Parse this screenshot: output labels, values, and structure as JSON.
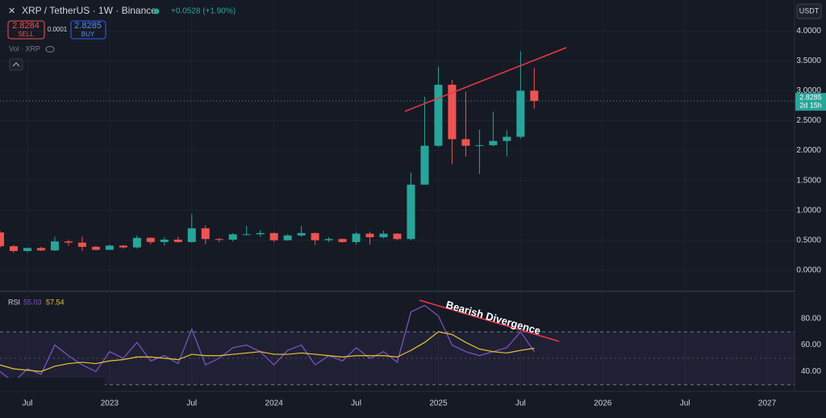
{
  "header": {
    "symbol": "XRP / TetherUS · 1W · Binance",
    "change": "+0.0528 (+1.90%)",
    "sell_price": "2.8284",
    "sell_label": "SELL",
    "spread": "0.0001",
    "buy_price": "2.8285",
    "buy_label": "BUY",
    "volume_label": "Vol · XRP",
    "currency": "USDT"
  },
  "chart_data": [
    {
      "type": "candlestick",
      "x": [
        "2022-05",
        "2022-06",
        "2022-07",
        "2022-08",
        "2022-09",
        "2022-10",
        "2022-11",
        "2022-12",
        "2023-01",
        "2023-02",
        "2023-03",
        "2023-04",
        "2023-05",
        "2023-06",
        "2023-07",
        "2023-08",
        "2023-09",
        "2023-10",
        "2023-11",
        "2023-12",
        "2024-01",
        "2024-02",
        "2024-03",
        "2024-04",
        "2024-05",
        "2024-06",
        "2024-07",
        "2024-08",
        "2024-09",
        "2024-10",
        "2024-11",
        "2024-12",
        "2025-01",
        "2025-02",
        "2025-03",
        "2025-04",
        "2025-05",
        "2025-06",
        "2025-07",
        "2025-08"
      ],
      "open": [
        0.63,
        0.4,
        0.32,
        0.37,
        0.33,
        0.48,
        0.46,
        0.39,
        0.34,
        0.41,
        0.38,
        0.54,
        0.47,
        0.51,
        0.47,
        0.7,
        0.52,
        0.51,
        0.6,
        0.6,
        0.62,
        0.5,
        0.58,
        0.62,
        0.5,
        0.52,
        0.47,
        0.61,
        0.55,
        0.61,
        0.52,
        1.43,
        2.08,
        3.1,
        2.19,
        2.08,
        2.09,
        2.16,
        2.23,
        3.0
      ],
      "high": [
        0.66,
        0.42,
        0.38,
        0.39,
        0.56,
        0.51,
        0.56,
        0.41,
        0.43,
        0.42,
        0.58,
        0.55,
        0.55,
        0.56,
        0.94,
        0.75,
        0.54,
        0.62,
        0.74,
        0.67,
        0.63,
        0.6,
        0.74,
        0.63,
        0.55,
        0.53,
        0.64,
        0.64,
        0.66,
        0.62,
        1.63,
        2.9,
        3.4,
        3.18,
        2.98,
        2.35,
        2.65,
        2.34,
        3.66,
        3.38
      ],
      "low": [
        0.37,
        0.29,
        0.3,
        0.32,
        0.32,
        0.41,
        0.32,
        0.33,
        0.34,
        0.36,
        0.36,
        0.43,
        0.41,
        0.46,
        0.46,
        0.43,
        0.47,
        0.48,
        0.58,
        0.56,
        0.47,
        0.49,
        0.56,
        0.42,
        0.47,
        0.46,
        0.43,
        0.43,
        0.53,
        0.5,
        0.5,
        1.43,
        2.06,
        1.77,
        1.9,
        1.61,
        2.07,
        1.9,
        2.2,
        2.7
      ],
      "close": [
        0.4,
        0.32,
        0.37,
        0.33,
        0.48,
        0.46,
        0.39,
        0.34,
        0.41,
        0.38,
        0.54,
        0.47,
        0.51,
        0.47,
        0.7,
        0.52,
        0.51,
        0.6,
        0.6,
        0.62,
        0.5,
        0.58,
        0.62,
        0.5,
        0.52,
        0.47,
        0.61,
        0.55,
        0.61,
        0.52,
        1.43,
        2.08,
        3.1,
        2.19,
        2.08,
        2.09,
        2.16,
        2.23,
        3.0,
        2.83
      ],
      "up_color": "#26a69a",
      "down_color": "#ef5350",
      "xlim": [
        "2022-05",
        "2027-03"
      ],
      "xticks": [
        {
          "value": "2022-07",
          "label": "Jul"
        },
        {
          "value": "2023-01",
          "label": "2023"
        },
        {
          "value": "2023-07",
          "label": "Jul"
        },
        {
          "value": "2024-01",
          "label": "2024"
        },
        {
          "value": "2024-07",
          "label": "Jul"
        },
        {
          "value": "2025-01",
          "label": "2025"
        },
        {
          "value": "2025-07",
          "label": "Jul"
        },
        {
          "value": "2026-01",
          "label": "2026"
        },
        {
          "value": "2026-07",
          "label": "Jul"
        },
        {
          "value": "2027-01",
          "label": "2027"
        }
      ],
      "ylim": [
        -0.3,
        4.45
      ],
      "yticks": [
        {
          "value": 0,
          "label": "0.0000"
        },
        {
          "value": 0.5,
          "label": "0.5000"
        },
        {
          "value": 1,
          "label": "1.0000"
        },
        {
          "value": 1.5,
          "label": "1.5000"
        },
        {
          "value": 2,
          "label": "2.0000"
        },
        {
          "value": 2.5,
          "label": "2.5000"
        },
        {
          "value": 3,
          "label": "3.0000"
        },
        {
          "value": 3.5,
          "label": "3.5000"
        },
        {
          "value": 4,
          "label": "4.0000"
        }
      ],
      "last_price": {
        "value": 2.8285,
        "label": "2.8285"
      },
      "countdown": "2d 15h"
    },
    {
      "type": "line",
      "title": "RSI",
      "legend_values": [
        55.03,
        57.54
      ],
      "x": [
        "2022-05",
        "2022-06",
        "2022-07",
        "2022-08",
        "2022-09",
        "2022-10",
        "2022-11",
        "2022-12",
        "2023-01",
        "2023-02",
        "2023-03",
        "2023-04",
        "2023-05",
        "2023-06",
        "2023-07",
        "2023-08",
        "2023-09",
        "2023-10",
        "2023-11",
        "2023-12",
        "2024-01",
        "2024-02",
        "2024-03",
        "2024-04",
        "2024-05",
        "2024-06",
        "2024-07",
        "2024-08",
        "2024-09",
        "2024-10",
        "2024-11",
        "2024-12",
        "2025-01",
        "2025-02",
        "2025-03",
        "2025-04",
        "2025-05",
        "2025-06",
        "2025-07",
        "2025-08"
      ],
      "series": [
        {
          "color": "#7e57c2",
          "values": [
            40,
            32,
            42,
            38,
            60,
            52,
            45,
            40,
            55,
            50,
            62,
            48,
            52,
            46,
            72,
            45,
            50,
            58,
            60,
            55,
            45,
            56,
            60,
            45,
            52,
            48,
            58,
            50,
            55,
            47,
            85,
            90,
            82,
            60,
            55,
            52,
            55,
            58,
            70,
            55.03
          ]
        },
        {
          "color": "#e6c52f",
          "values": [
            45,
            42,
            41,
            40,
            44,
            46,
            47,
            46,
            48,
            49,
            51,
            51,
            50,
            49,
            53,
            52,
            52,
            53,
            54,
            55,
            53,
            53,
            54,
            53,
            52,
            51,
            52,
            52,
            52,
            51,
            56,
            62,
            70,
            68,
            62,
            57,
            55,
            54,
            56,
            57.54
          ]
        }
      ],
      "xlim": [
        "2022-05",
        "2027-03"
      ],
      "ylim": [
        25,
        100
      ],
      "yticks": [
        {
          "value": 40,
          "label": "40.00"
        },
        {
          "value": 60,
          "label": "60.00"
        },
        {
          "value": 80,
          "label": "80.00"
        }
      ],
      "bands": [
        30,
        70
      ],
      "midline": 50,
      "annotation": "Bearish Divergence"
    }
  ]
}
